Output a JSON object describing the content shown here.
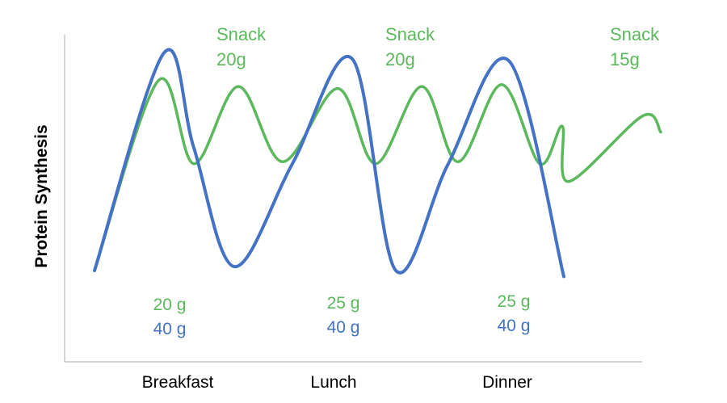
{
  "chart_data": {
    "type": "line",
    "title": "",
    "xlabel": "",
    "ylabel": "Protein Synthesis",
    "categories": [
      "Breakfast",
      "Lunch",
      "Dinner"
    ],
    "grid": false,
    "legend": "none",
    "colors": {
      "green": "#5cb85c",
      "blue": "#4472c4"
    },
    "series": [
      {
        "color": "#5cb85c",
        "x": [
          0,
          1,
          2,
          3,
          4,
          5,
          6,
          7,
          8,
          9,
          10,
          11,
          12,
          13,
          14
        ],
        "y": [
          0,
          0.96,
          0.54,
          0.93,
          0.55,
          0.92,
          0.54,
          0.93,
          0.55,
          0.94,
          0.54,
          0.73,
          0.45,
          0.78,
          0.7
        ]
      },
      {
        "color": "#4472c4",
        "x": [
          0,
          1,
          2,
          3,
          4,
          5,
          6,
          7,
          8,
          9
        ],
        "y": [
          0,
          1.1,
          0.62,
          0.02,
          0.54,
          1.07,
          0,
          0.54,
          1.06,
          -0.03
        ]
      }
    ],
    "annotations": {
      "meals": [
        {
          "label": "Breakfast",
          "green": "20 g",
          "blue": "40 g"
        },
        {
          "label": "Lunch",
          "green": "25 g",
          "blue": "40 g"
        },
        {
          "label": "Dinner",
          "green": "25 g",
          "blue": "40 g"
        }
      ],
      "snacks": [
        {
          "title": "Snack",
          "amount": "20g"
        },
        {
          "title": "Snack",
          "amount": "20g"
        },
        {
          "title": "Snack",
          "amount": "15g"
        }
      ]
    }
  }
}
